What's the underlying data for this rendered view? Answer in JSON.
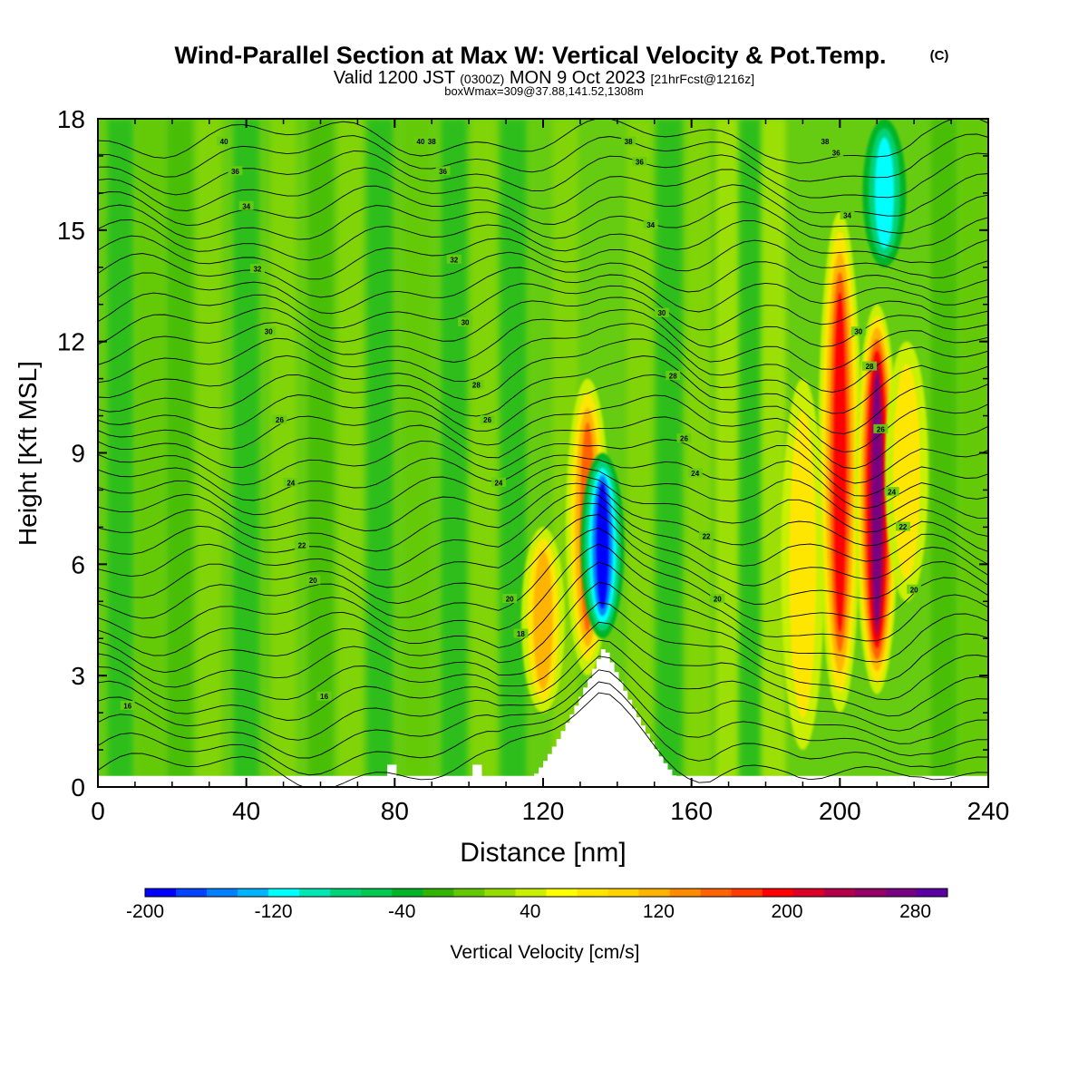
{
  "header": {
    "title": "Wind-Parallel Section at Max W: Vertical Velocity & Pot.Temp.",
    "copyright": "(C)",
    "valid_prefix": "Valid 1200 JST",
    "utc": "(0300Z)",
    "valid_date": "MON 9 Oct 2023",
    "forecast": "[21hrFcst@1216z]",
    "box": "boxWmax=309@37.88,141.52,1308m"
  },
  "colors": {
    "background_w": "#66cc11",
    "terrain": "#ffffff",
    "contour": "#000000"
  },
  "chart_data": {
    "type": "heatmap",
    "title": "Wind-Parallel Section at Max W: Vertical Velocity & Pot.Temp.",
    "xlabel": "Distance [nm]",
    "ylabel": "Height [Kft MSL]",
    "xlim": [
      0,
      240
    ],
    "ylim": [
      0,
      18
    ],
    "x_ticks": [
      "0",
      "40",
      "80",
      "120",
      "160",
      "200",
      "240"
    ],
    "y_ticks": [
      "0",
      "3",
      "6",
      "9",
      "12",
      "15",
      "18"
    ],
    "colorbar": {
      "label": "Vertical Velocity [cm/s]",
      "ticks": [
        "-200",
        "-120",
        "-40",
        "40",
        "120",
        "200",
        "280"
      ],
      "levels": [
        -200,
        300
      ],
      "colors": [
        "#0000ff",
        "#0044ff",
        "#0080ff",
        "#00b4ff",
        "#00ffff",
        "#00e6b4",
        "#00d278",
        "#00c850",
        "#00b428",
        "#32b400",
        "#64c800",
        "#96dc00",
        "#c8f000",
        "#ffff00",
        "#ffe600",
        "#ffd200",
        "#ffb400",
        "#ff8c00",
        "#ff6400",
        "#ff3c00",
        "#ff0000",
        "#dc0028",
        "#b40046",
        "#960064",
        "#780082",
        "#5a00a0"
      ]
    },
    "theta_contour_labels": [
      "16",
      "16",
      "18",
      "20",
      "20",
      "20",
      "20",
      "22",
      "22",
      "22",
      "24",
      "24",
      "24",
      "24",
      "26",
      "26",
      "26",
      "26",
      "28",
      "28",
      "28",
      "30",
      "30",
      "30",
      "30",
      "32",
      "32",
      "34",
      "34",
      "34",
      "36",
      "36",
      "36",
      "36",
      "38",
      "38",
      "38",
      "40",
      "40"
    ],
    "updraft_features": [
      {
        "x_center": 120,
        "z_bottom": 2,
        "z_top": 7,
        "w_max": 120
      },
      {
        "x_center": 132,
        "z_bottom": 3,
        "z_top": 11,
        "w_max": 160
      },
      {
        "x_center": 190,
        "z_bottom": 1,
        "z_top": 11,
        "w_max": 100
      },
      {
        "x_center": 200,
        "z_bottom": 2,
        "z_top": 15.5,
        "w_max": 200
      },
      {
        "x_center": 210,
        "z_bottom": 2.5,
        "z_top": 13,
        "w_max": 300
      },
      {
        "x_center": 218,
        "z_bottom": 5,
        "z_top": 12,
        "w_max": 80
      }
    ],
    "downdraft_features": [
      {
        "x_center": 136,
        "z_bottom": 4,
        "z_top": 9,
        "w_min": -200
      },
      {
        "x_center": 212,
        "z_bottom": 14,
        "z_top": 18,
        "w_min": -140
      }
    ],
    "terrain_peak": {
      "x": 136,
      "height": 3.8
    }
  }
}
